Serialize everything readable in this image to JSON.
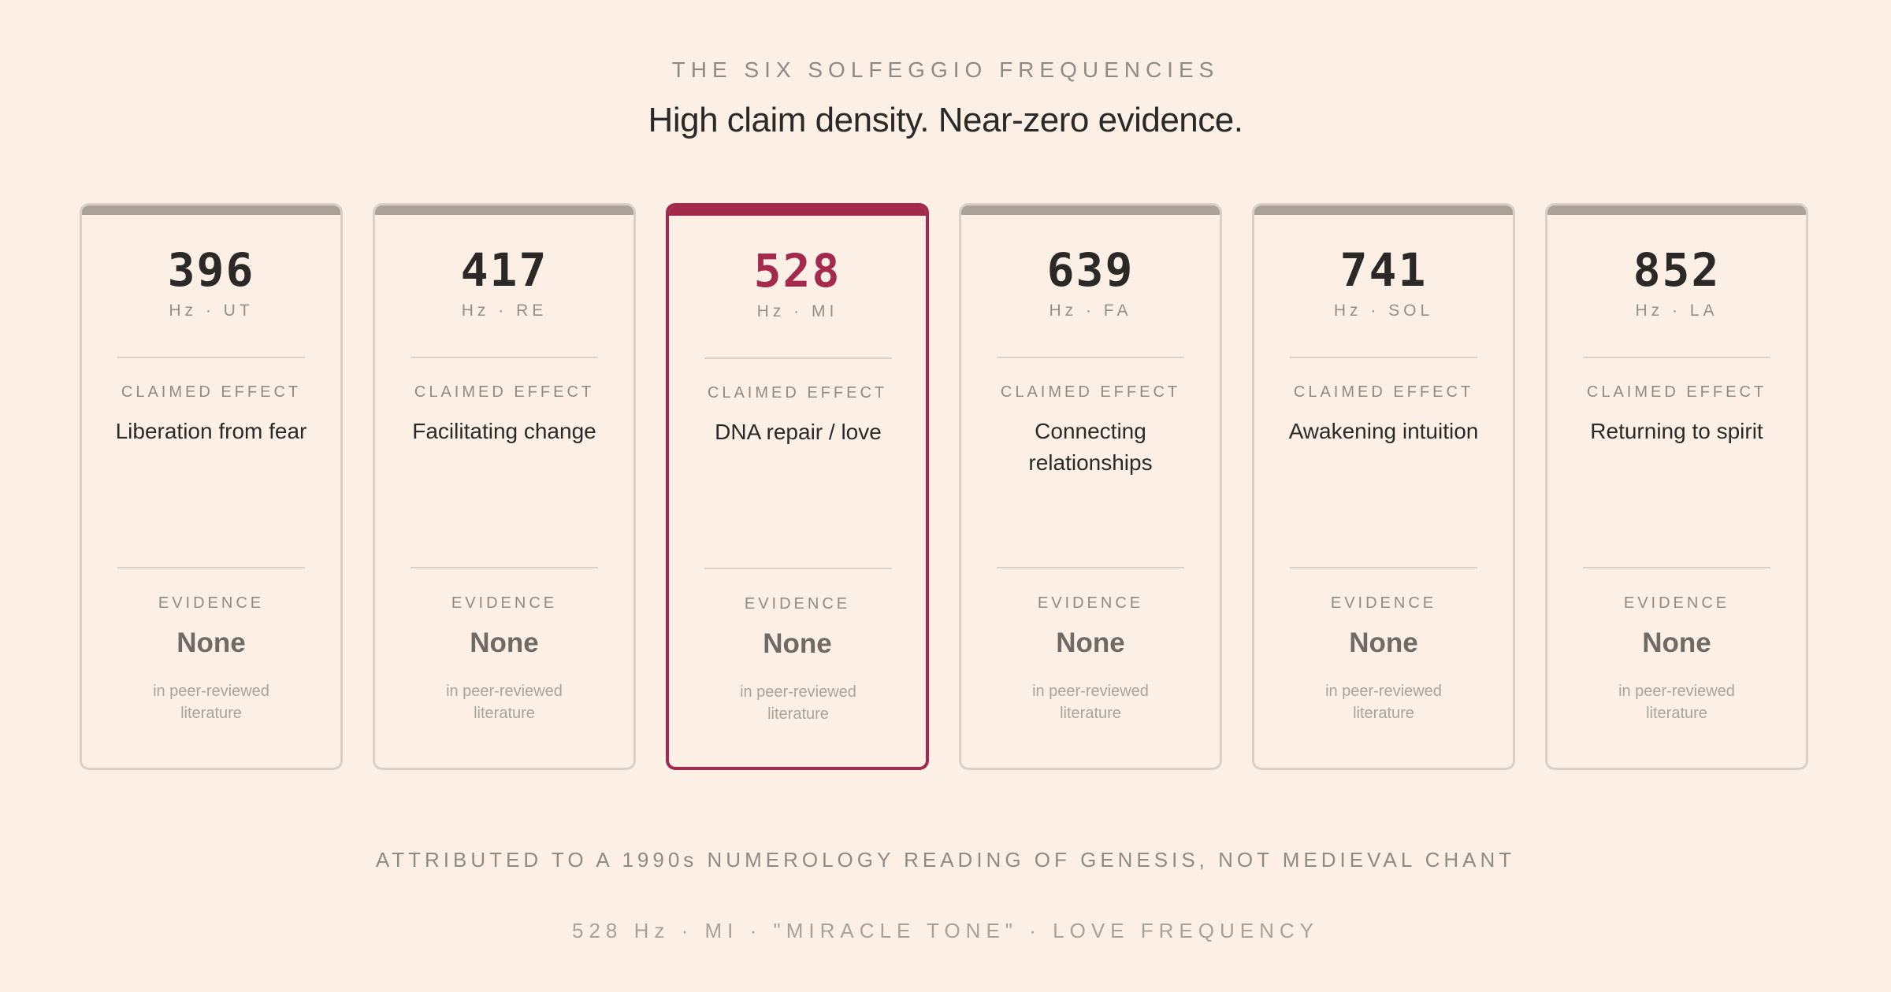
{
  "header": {
    "eyebrow": "THE SIX SOLFEGGIO FREQUENCIES",
    "title": "High claim density. Near-zero evidence."
  },
  "colors": {
    "accent": "#a3294d",
    "background": "#fcf0e6",
    "card_bar": "#aaa199"
  },
  "cards": [
    {
      "frequency": "396",
      "unit": "Hz · UT",
      "claim_label": "CLAIMED EFFECT",
      "claim": "Liberation from fear",
      "evidence_label": "EVIDENCE",
      "evidence": "None",
      "evidence_note": "in peer-reviewed literature"
    },
    {
      "frequency": "417",
      "unit": "Hz · RE",
      "claim_label": "CLAIMED EFFECT",
      "claim": "Facilitating change",
      "evidence_label": "EVIDENCE",
      "evidence": "None",
      "evidence_note": "in peer-reviewed literature"
    },
    {
      "frequency": "528",
      "unit": "Hz · MI",
      "claim_label": "CLAIMED EFFECT",
      "claim": "DNA repair / love",
      "evidence_label": "EVIDENCE",
      "evidence": "None",
      "evidence_note": "in peer-reviewed literature"
    },
    {
      "frequency": "639",
      "unit": "Hz · FA",
      "claim_label": "CLAIMED EFFECT",
      "claim": "Connecting relationships",
      "evidence_label": "EVIDENCE",
      "evidence": "None",
      "evidence_note": "in peer-reviewed literature"
    },
    {
      "frequency": "741",
      "unit": "Hz · SOL",
      "claim_label": "CLAIMED EFFECT",
      "claim": "Awakening intuition",
      "evidence_label": "EVIDENCE",
      "evidence": "None",
      "evidence_note": "in peer-reviewed literature"
    },
    {
      "frequency": "852",
      "unit": "Hz · LA",
      "claim_label": "CLAIMED EFFECT",
      "claim": "Returning to spirit",
      "evidence_label": "EVIDENCE",
      "evidence": "None",
      "evidence_note": "in peer-reviewed literature"
    }
  ],
  "footer": {
    "attribution": "ATTRIBUTED TO A 1990s NUMEROLOGY READING OF GENESIS, NOT MEDIEVAL CHANT",
    "highlight": "528 Hz · MI · \"MIRACLE TONE\" · LOVE FREQUENCY"
  }
}
